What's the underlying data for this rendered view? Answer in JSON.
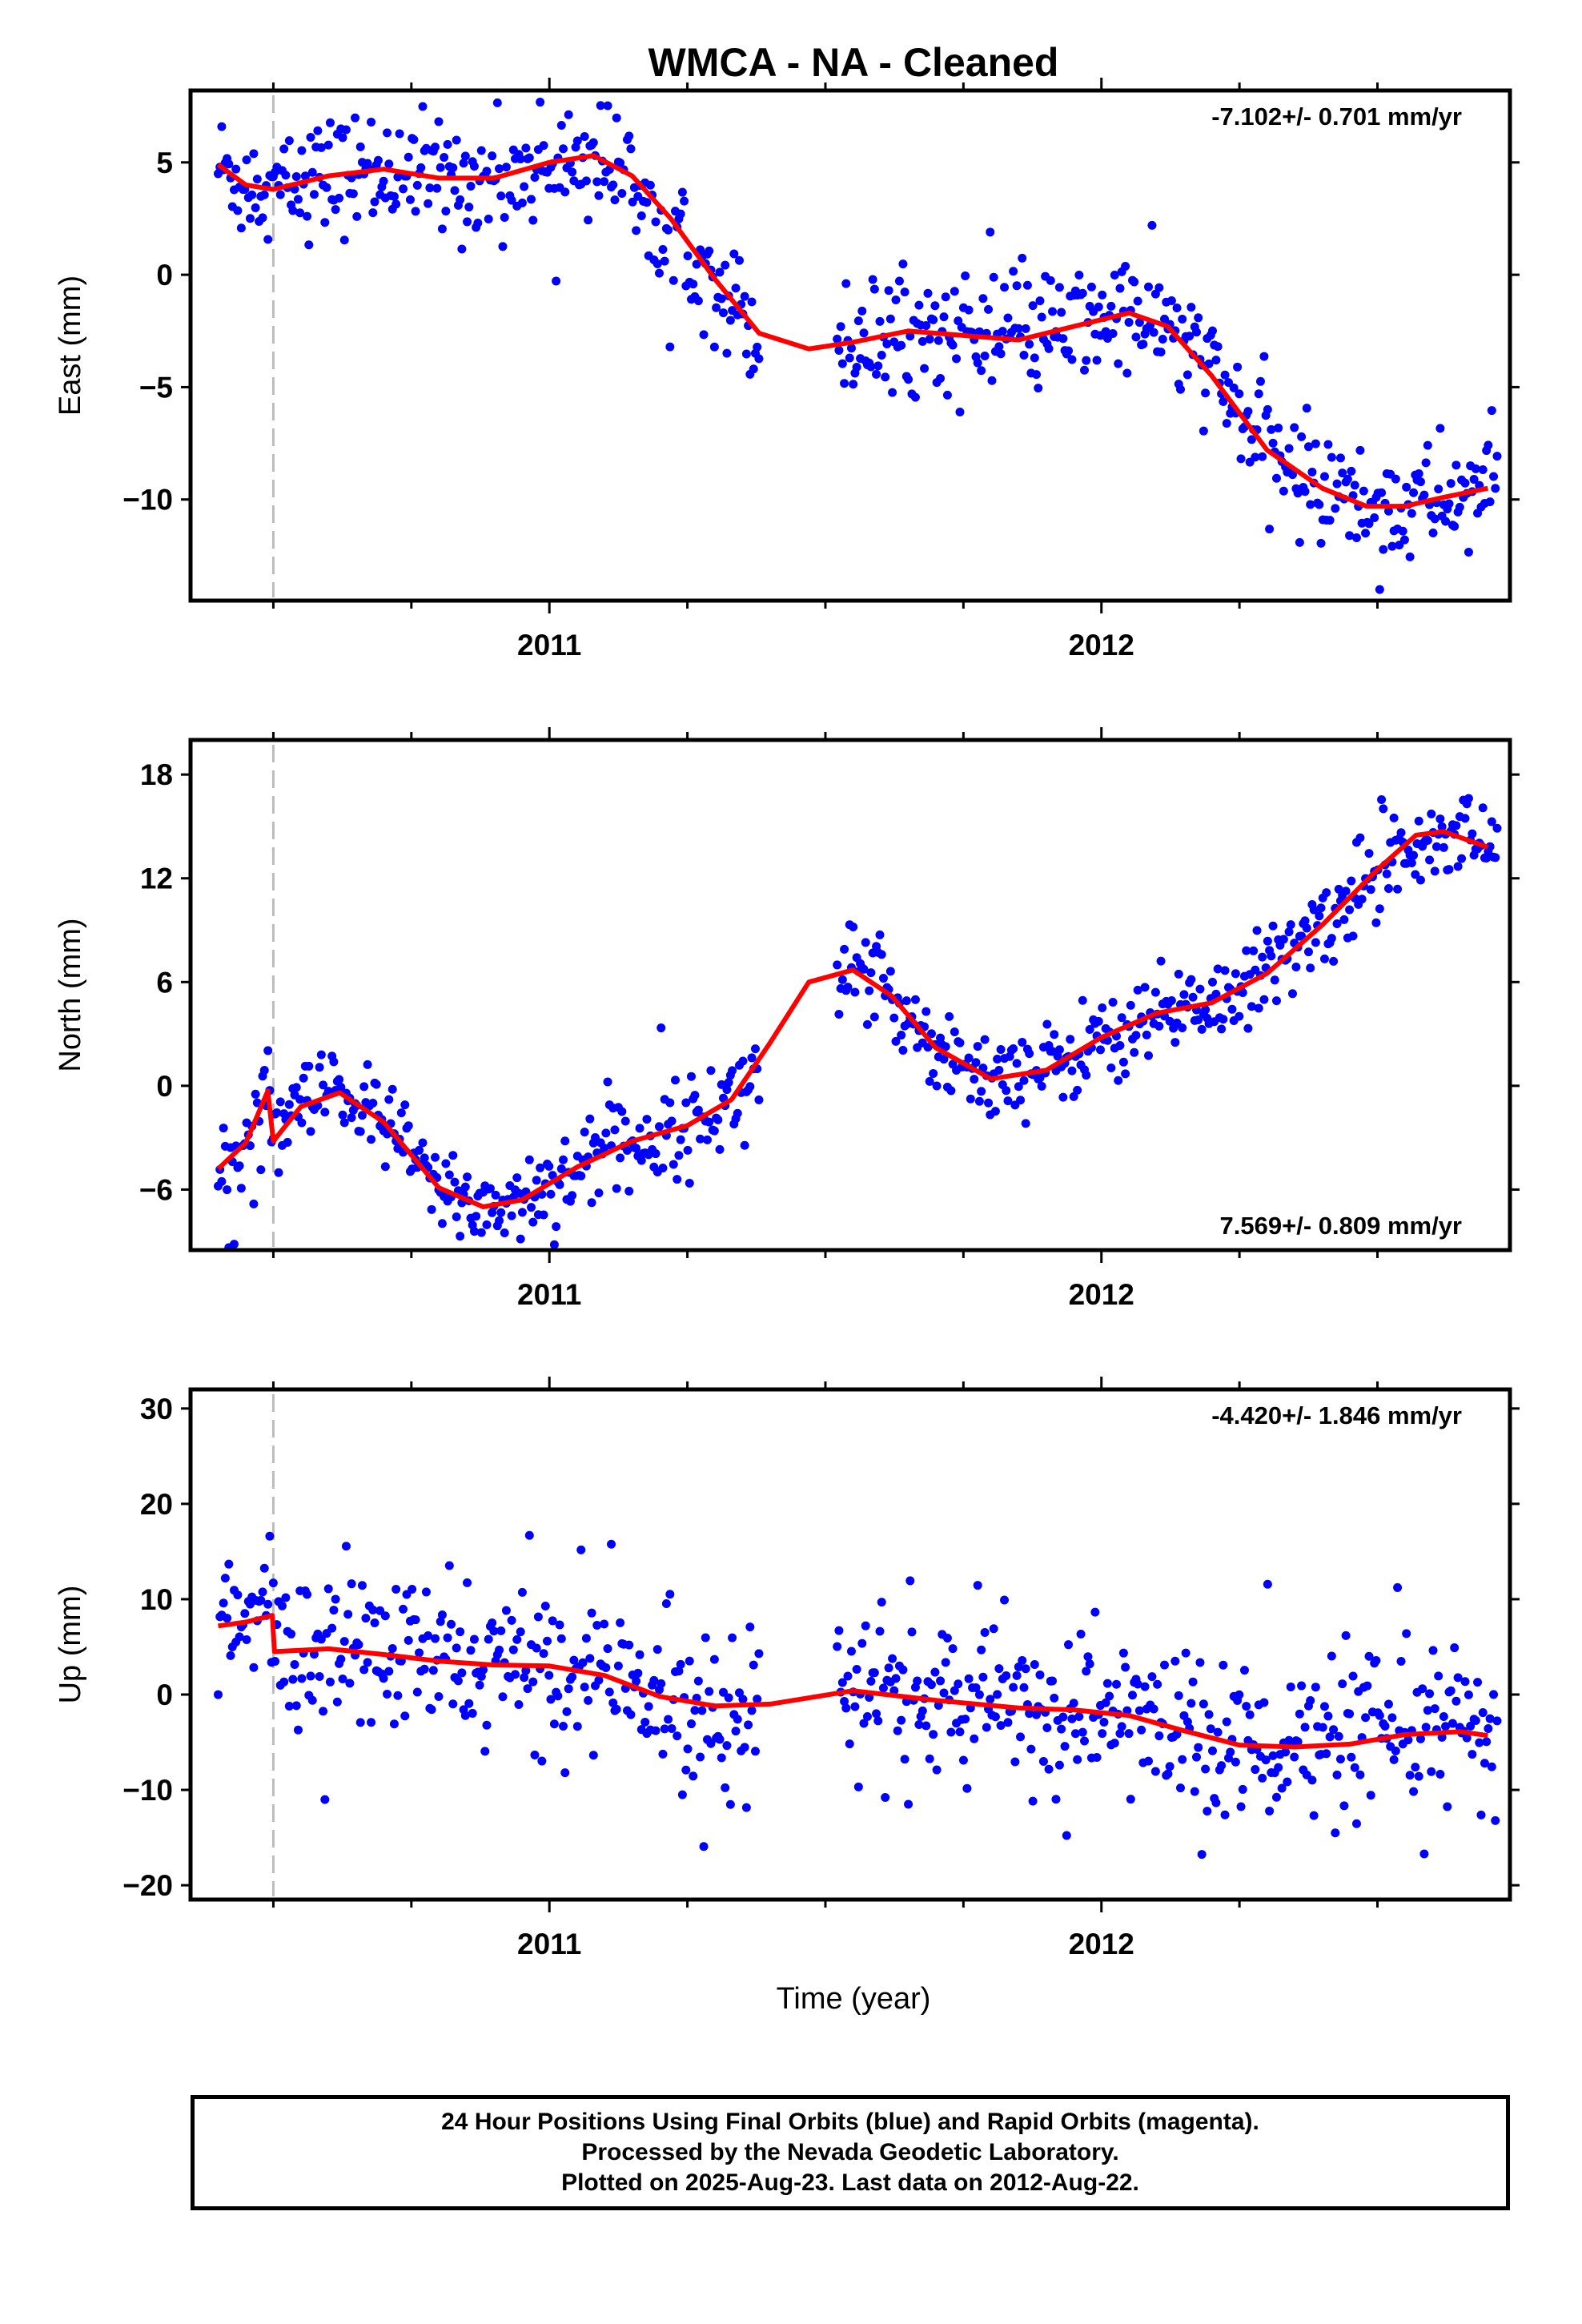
{
  "title": "WMCA  - NA - Cleaned",
  "colors": {
    "final_orbits": "#0000ff",
    "model": "#ff0000",
    "break_line": "#bbbbbb",
    "frame": "#000000"
  },
  "x_axis": {
    "label": "Time (year)",
    "ticks": [
      "2011",
      "2012"
    ]
  },
  "chart_data": [
    {
      "type": "scatter",
      "component": "east",
      "ylabel": "East (mm)",
      "rate_text": "-7.102+/- 0.701 mm/yr",
      "rate_position": "top-right",
      "xlim": [
        2010.35,
        2012.74
      ],
      "ylim": [
        -14.5,
        8.2
      ],
      "yticks": [
        5,
        0,
        -5,
        -10
      ],
      "ytick_labels": [
        "5",
        "0",
        "−5",
        "−10"
      ],
      "xticks": [
        2011,
        2012
      ],
      "break_epoch": 2010.5,
      "model": {
        "x": [
          2010.4,
          2010.45,
          2010.5,
          2010.6,
          2010.7,
          2010.8,
          2010.9,
          2011.0,
          2011.08,
          2011.15,
          2011.22,
          2011.3,
          2011.38,
          2011.47,
          2011.55,
          2011.65,
          2011.75,
          2011.85,
          2011.95,
          2012.05,
          2012.12,
          2012.2,
          2012.3,
          2012.4,
          2012.48,
          2012.55,
          2012.62,
          2012.7
        ],
        "y": [
          4.9,
          4.0,
          3.8,
          4.4,
          4.7,
          4.3,
          4.3,
          5.0,
          5.3,
          4.4,
          2.5,
          -0.2,
          -2.6,
          -3.3,
          -3.0,
          -2.5,
          -2.7,
          -2.9,
          -2.3,
          -1.7,
          -2.3,
          -4.5,
          -7.8,
          -9.5,
          -10.3,
          -10.3,
          -9.9,
          -9.5
        ]
      },
      "points_summary": {
        "approx_count": 720,
        "gap": [
          2011.38,
          2011.52
        ]
      }
    },
    {
      "type": "scatter",
      "component": "north",
      "ylabel": "North (mm)",
      "rate_text": "7.569+/- 0.809 mm/yr",
      "rate_position": "bottom-right",
      "xlim": [
        2010.35,
        2012.74
      ],
      "ylim": [
        -9.5,
        20
      ],
      "yticks": [
        18,
        12,
        6,
        0,
        -6
      ],
      "ytick_labels": [
        "18",
        "12",
        "6",
        "0",
        "−6"
      ],
      "xticks": [
        2011,
        2012
      ],
      "break_epoch": 2010.5,
      "model": {
        "x": [
          2010.4,
          2010.45,
          2010.49,
          2010.5,
          2010.55,
          2010.62,
          2010.7,
          2010.8,
          2010.88,
          2010.95,
          2011.05,
          2011.15,
          2011.25,
          2011.33,
          2011.4,
          2011.47,
          2011.55,
          2011.62,
          2011.7,
          2011.8,
          2011.9,
          2012.0,
          2012.1,
          2012.2,
          2012.3,
          2012.4,
          2012.5,
          2012.57,
          2012.62,
          2012.7
        ],
        "y": [
          -4.8,
          -3.3,
          -0.3,
          -3.2,
          -1.2,
          -0.4,
          -2.1,
          -5.9,
          -7.0,
          -6.6,
          -4.7,
          -3.2,
          -2.3,
          -0.8,
          2.5,
          6.0,
          6.7,
          5.2,
          2.2,
          0.4,
          0.9,
          2.8,
          4.2,
          4.8,
          6.5,
          9.3,
          12.5,
          14.5,
          14.7,
          13.8
        ]
      },
      "points_summary": {
        "approx_count": 720,
        "gap": [
          2011.38,
          2011.52
        ]
      }
    },
    {
      "type": "scatter",
      "component": "up",
      "ylabel": "Up (mm)",
      "rate_text": "-4.420+/- 1.846 mm/yr",
      "rate_position": "top-right",
      "xlim": [
        2010.35,
        2012.74
      ],
      "ylim": [
        -21.5,
        32
      ],
      "yticks": [
        30,
        20,
        10,
        0,
        -10,
        -20
      ],
      "ytick_labels": [
        "30",
        "20",
        "10",
        "0",
        "−10",
        "−20"
      ],
      "xticks": [
        2011,
        2012
      ],
      "break_epoch": 2010.5,
      "model": {
        "x": [
          2010.4,
          2010.45,
          2010.498,
          2010.502,
          2010.6,
          2010.7,
          2010.8,
          2010.9,
          2011.0,
          2011.1,
          2011.2,
          2011.3,
          2011.4,
          2011.55,
          2011.7,
          2011.85,
          2011.95,
          2012.05,
          2012.15,
          2012.25,
          2012.35,
          2012.45,
          2012.55,
          2012.65,
          2012.7
        ],
        "y": [
          7.2,
          7.6,
          8.3,
          4.5,
          4.8,
          4.2,
          3.5,
          3.1,
          3.0,
          2.0,
          -0.2,
          -1.2,
          -1.0,
          0.4,
          -0.6,
          -1.4,
          -1.6,
          -2.2,
          -3.8,
          -5.3,
          -5.5,
          -5.2,
          -4.2,
          -3.9,
          -4.3
        ]
      },
      "points_summary": {
        "approx_count": 720,
        "gap": [
          2011.38,
          2011.52
        ]
      }
    }
  ],
  "footer": {
    "line1": "24 Hour Positions Using Final Orbits (blue) and Rapid Orbits (magenta).",
    "line2": "Processed by the Nevada Geodetic Laboratory.",
    "line3": "Plotted on 2025-Aug-23. Last data on 2012-Aug-22."
  }
}
